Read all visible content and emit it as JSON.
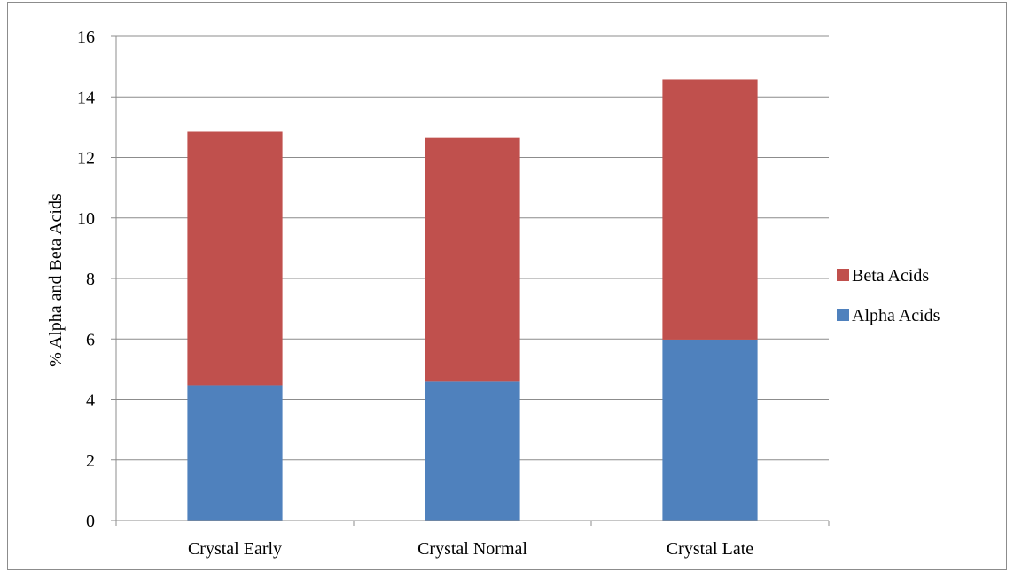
{
  "chart_data": {
    "type": "bar",
    "stacked": true,
    "title": "",
    "xlabel": "",
    "ylabel": "% Alpha and Beta Acids",
    "ylim": [
      0,
      16
    ],
    "yticks": [
      0,
      2,
      4,
      6,
      8,
      10,
      12,
      14,
      16
    ],
    "grid": true,
    "legend_position": "right",
    "categories": [
      "Crystal Early",
      "Crystal Normal",
      "Crystal Late"
    ],
    "series": [
      {
        "name": "Alpha Acids",
        "values": [
          4.47,
          4.59,
          5.98
        ],
        "color": "#4F81BD"
      },
      {
        "name": "Beta Acids",
        "values": [
          8.38,
          8.05,
          8.6
        ],
        "color": "#C0504D"
      }
    ]
  }
}
